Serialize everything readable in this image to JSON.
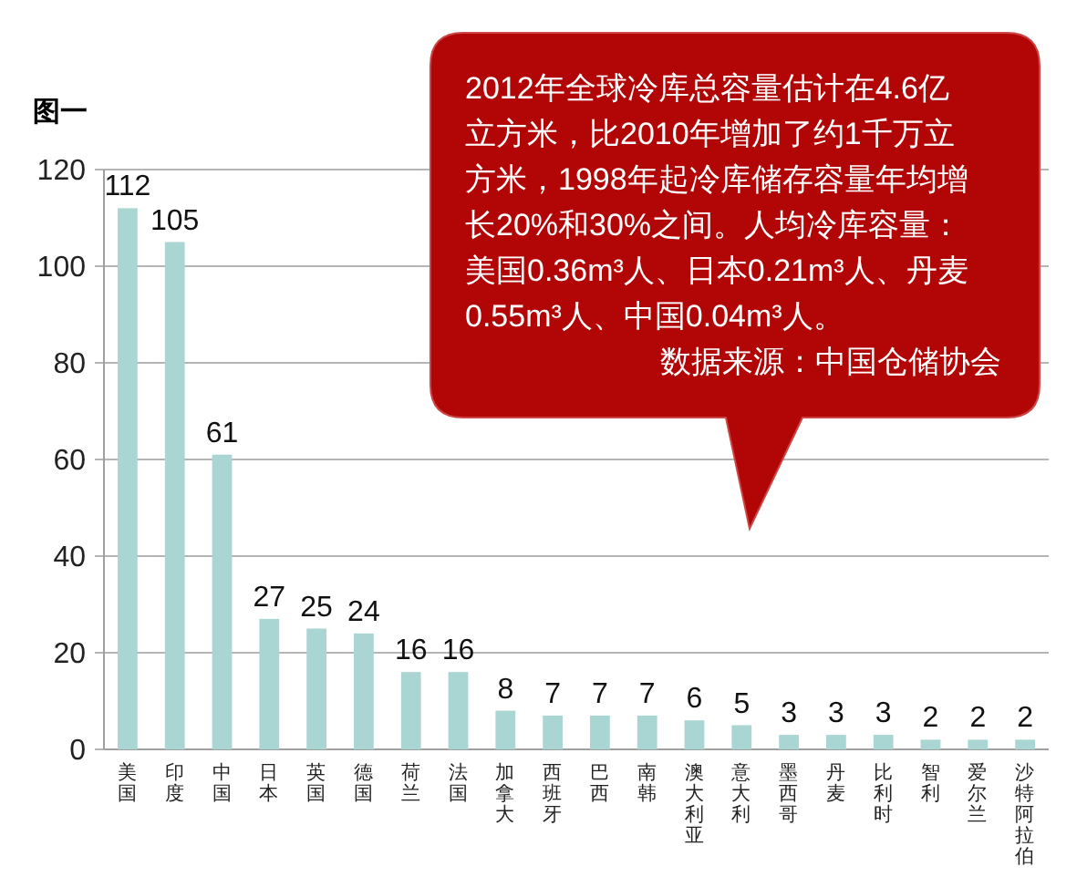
{
  "chart_data": {
    "type": "bar",
    "title": "图一",
    "categories": [
      "美国",
      "印度",
      "中国",
      "日本",
      "英国",
      "德国",
      "荷兰",
      "法国",
      "加拿大",
      "西班牙",
      "巴西",
      "南韩",
      "澳大利亚",
      "意大利",
      "墨西哥",
      "丹麦",
      "比利时",
      "智利",
      "爱尔兰",
      "沙特阿拉伯"
    ],
    "values": [
      112,
      105,
      61,
      27,
      25,
      24,
      16,
      16,
      8,
      7,
      7,
      7,
      6,
      5,
      3,
      3,
      3,
      2,
      2,
      2
    ],
    "color": "#a9d5d3",
    "ylim": [
      0,
      120
    ],
    "yticks": [
      0,
      20,
      40,
      60,
      80,
      100,
      120
    ],
    "grid": "y",
    "data_labels": true,
    "annotations": [
      "2012年全球冷库总容量估计在4.6亿立方米，比2010年增加了约1千万立方米，1998年起冷库储存容量年均增长20%和30%之间。人均冷库容量：美国0.36m³人、日本0.21m³人、丹麦0.55m³人、中国0.04m³人。",
      "数据来源：中国仓储协会"
    ]
  }
}
